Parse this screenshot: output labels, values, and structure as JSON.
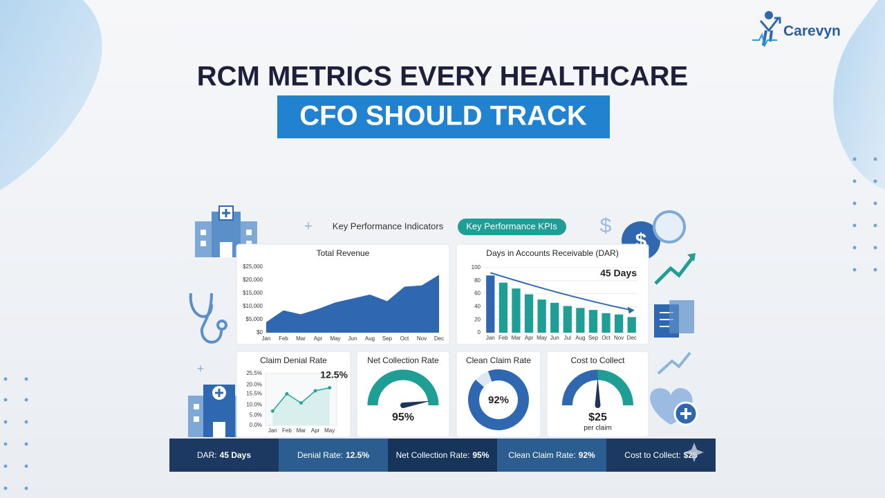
{
  "brand": "Carevyn",
  "headline": [
    "RCM METRICS EVERY HEALTHCARE",
    "CFO SHOULD TRACK"
  ],
  "tabs": [
    "Key Performance Indicators",
    "Key Performance KPIs"
  ],
  "chart_data": [
    {
      "type": "area",
      "title": "Total Revenue",
      "categories": [
        "Jan",
        "Feb",
        "Mar",
        "Apr",
        "May",
        "Jun",
        "Aug",
        "Sep",
        "Oct",
        "Nov",
        "Dec"
      ],
      "values": [
        4000,
        8500,
        7000,
        9000,
        11500,
        13000,
        14500,
        12000,
        17500,
        18000,
        22000
      ],
      "color": "#2f68b0",
      "ylim": [
        0,
        25000
      ],
      "yticks": [
        {
          "value": 0,
          "label": "$0"
        },
        {
          "value": 5000,
          "label": "$5,000"
        },
        {
          "value": 10000,
          "label": "$10,000"
        },
        {
          "value": 15000,
          "label": "$15,000"
        },
        {
          "value": 20000,
          "label": "$20,000"
        },
        {
          "value": 25000,
          "label": "$25,000"
        }
      ]
    },
    {
      "type": "bar",
      "title": "Days in Accounts Receivable (DAR)",
      "annotation": "45 Days",
      "categories": [
        "Jan",
        "Feb",
        "Mar",
        "Apr",
        "May",
        "Jun",
        "Jul",
        "Aug",
        "Sep",
        "Oct",
        "Nov",
        "Dec"
      ],
      "values": [
        88,
        77,
        68,
        59,
        51,
        46,
        41,
        38,
        35,
        30,
        28,
        24
      ],
      "colors": [
        "#2f68b0",
        "#1f9e96",
        "#1f9e96",
        "#1f9e96",
        "#1f9e96",
        "#1f9e96",
        "#1f9e96",
        "#1f9e96",
        "#1f9e96",
        "#1f9e96",
        "#1f9e96",
        "#1f9e96"
      ],
      "ylim": [
        0,
        100
      ],
      "yticks": [
        0,
        20,
        40,
        60,
        80,
        100
      ]
    },
    {
      "type": "line",
      "title": "Claim Denial Rate",
      "annotation": "12.5%",
      "categories": [
        "Jan",
        "Feb",
        "Mar",
        "Apr",
        "May"
      ],
      "values": [
        7,
        15.5,
        11,
        17,
        18.5
      ],
      "color": "#25a59a",
      "ylim": [
        0,
        25.5
      ],
      "yticks": [
        {
          "value": 0,
          "label": "0.0%"
        },
        {
          "value": 5,
          "label": "5.0%"
        },
        {
          "value": 10,
          "label": "10.0%"
        },
        {
          "value": 15.5,
          "label": "15.5%"
        },
        {
          "value": 20,
          "label": "20.0%"
        },
        {
          "value": 25.5,
          "label": "25.5%"
        }
      ]
    },
    {
      "type": "gauge",
      "title": "Net Collection Rate",
      "values": [
        95
      ],
      "value_labels": [
        "95%"
      ],
      "ylim": [
        0,
        100
      ],
      "color": "#1f9e96"
    },
    {
      "type": "donut",
      "title": "Clean Claim Rate",
      "values": [
        92
      ],
      "value_labels": [
        "92%"
      ],
      "ylim": [
        0,
        100
      ],
      "color": "#2f68b0"
    },
    {
      "type": "gauge",
      "title": "Cost to Collect",
      "values": [
        25
      ],
      "value_labels": [
        "$25"
      ],
      "subtitle": "per claim",
      "ylim": [
        0,
        50
      ],
      "color": "#2f68b0"
    }
  ],
  "footer": [
    {
      "label": "DAR:",
      "value": "45 Days"
    },
    {
      "label": "Denial Rate:",
      "value": "12.5%"
    },
    {
      "label": "Net Collection Rate:",
      "value": "95%"
    },
    {
      "label": "Clean Claim Rate:",
      "value": "92%"
    },
    {
      "label": "Cost to Collect:",
      "value": "$25"
    }
  ]
}
